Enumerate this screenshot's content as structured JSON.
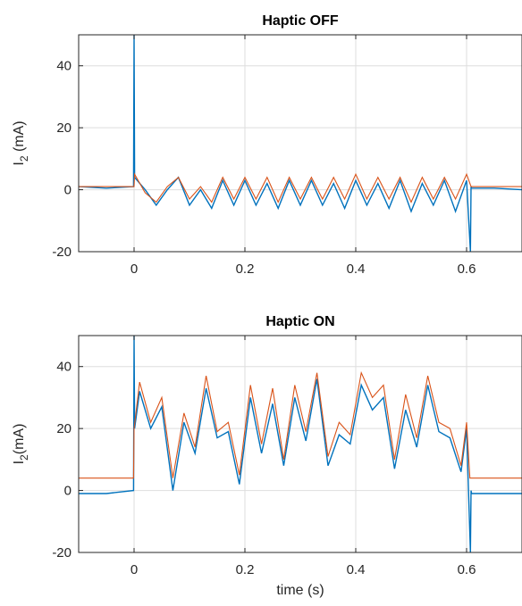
{
  "chart_data": [
    {
      "type": "line",
      "title": "Haptic OFF",
      "ylabel": "I_2 (mA)",
      "xlabel": "",
      "xlim": [
        -0.1,
        0.7
      ],
      "ylim": [
        -20,
        50
      ],
      "xticks": [
        "0",
        "0.2",
        "0.4",
        "0.6"
      ],
      "xtick_values": [
        0,
        0.2,
        0.4,
        0.6
      ],
      "yticks": [
        "-20",
        "0",
        "20",
        "40"
      ],
      "ytick_values": [
        -20,
        0,
        20,
        40
      ],
      "grid": true,
      "series": [
        {
          "color": "#0072BD",
          "x": [
            -0.1,
            -0.05,
            -0.001,
            0,
            0.001,
            0.02,
            0.04,
            0.06,
            0.08,
            0.1,
            0.12,
            0.14,
            0.16,
            0.18,
            0.2,
            0.22,
            0.24,
            0.26,
            0.28,
            0.3,
            0.32,
            0.34,
            0.36,
            0.38,
            0.4,
            0.42,
            0.44,
            0.46,
            0.48,
            0.5,
            0.52,
            0.54,
            0.56,
            0.58,
            0.6,
            0.607,
            0.608,
            0.609,
            0.65,
            0.7
          ],
          "y": [
            1,
            0.5,
            1,
            50,
            4,
            0,
            -5,
            0,
            4,
            -5,
            0,
            -6,
            3,
            -5,
            3,
            -5,
            2,
            -6,
            3,
            -5,
            3,
            -5,
            2,
            -6,
            3,
            -5,
            2,
            -6,
            3,
            -7,
            2,
            -5,
            3,
            -7,
            3,
            -20,
            1,
            0.5,
            0.5,
            0
          ]
        },
        {
          "color": "#D95319",
          "x": [
            -0.1,
            0,
            0.001,
            0.02,
            0.04,
            0.06,
            0.08,
            0.1,
            0.12,
            0.14,
            0.16,
            0.18,
            0.2,
            0.22,
            0.24,
            0.26,
            0.28,
            0.3,
            0.32,
            0.34,
            0.36,
            0.38,
            0.4,
            0.42,
            0.44,
            0.46,
            0.48,
            0.5,
            0.52,
            0.54,
            0.56,
            0.58,
            0.6,
            0.608,
            0.609,
            0.7
          ],
          "y": [
            1,
            1,
            5,
            -1,
            -4,
            1,
            4,
            -3,
            1,
            -4,
            4,
            -3,
            4,
            -3,
            4,
            -4,
            4,
            -3,
            4,
            -3,
            4,
            -3,
            5,
            -3,
            4,
            -3,
            4,
            -4,
            4,
            -3,
            4,
            -3,
            5,
            1,
            1,
            1
          ]
        }
      ]
    },
    {
      "type": "line",
      "title": "Haptic ON",
      "ylabel": "I_2(mA)",
      "xlabel": "time (s)",
      "xlim": [
        -0.1,
        0.7
      ],
      "ylim": [
        -20,
        50
      ],
      "xticks": [
        "0",
        "0.2",
        "0.4",
        "0.6"
      ],
      "xtick_values": [
        0,
        0.2,
        0.4,
        0.6
      ],
      "yticks": [
        "-20",
        "0",
        "20",
        "40"
      ],
      "ytick_values": [
        -20,
        0,
        20,
        40
      ],
      "grid": true,
      "series": [
        {
          "color": "#0072BD",
          "x": [
            -0.1,
            -0.05,
            -0.001,
            0,
            0.001,
            0.01,
            0.03,
            0.05,
            0.07,
            0.09,
            0.11,
            0.13,
            0.15,
            0.17,
            0.19,
            0.21,
            0.23,
            0.25,
            0.27,
            0.29,
            0.31,
            0.33,
            0.35,
            0.37,
            0.39,
            0.41,
            0.43,
            0.45,
            0.47,
            0.49,
            0.51,
            0.53,
            0.55,
            0.57,
            0.59,
            0.6,
            0.607,
            0.608,
            0.609,
            0.65,
            0.7
          ],
          "y": [
            -1,
            -1,
            0,
            50,
            20,
            32,
            20,
            27,
            0,
            22,
            12,
            33,
            17,
            19,
            2,
            30,
            12,
            28,
            8,
            30,
            16,
            36,
            8,
            18,
            15,
            34,
            26,
            30,
            7,
            26,
            14,
            34,
            19,
            17,
            6,
            20,
            -20,
            0,
            -1,
            -1,
            -1
          ]
        },
        {
          "color": "#D95319",
          "x": [
            -0.1,
            -0.001,
            0,
            0.01,
            0.03,
            0.05,
            0.07,
            0.09,
            0.11,
            0.13,
            0.15,
            0.17,
            0.19,
            0.21,
            0.23,
            0.25,
            0.27,
            0.29,
            0.31,
            0.33,
            0.35,
            0.37,
            0.39,
            0.41,
            0.43,
            0.45,
            0.47,
            0.49,
            0.51,
            0.53,
            0.55,
            0.57,
            0.59,
            0.6,
            0.606,
            0.607,
            0.7
          ],
          "y": [
            4,
            4,
            20,
            35,
            22,
            30,
            4,
            25,
            14,
            37,
            19,
            22,
            5,
            34,
            15,
            33,
            10,
            34,
            19,
            38,
            11,
            22,
            18,
            38,
            30,
            34,
            10,
            31,
            17,
            37,
            22,
            20,
            8,
            22,
            4,
            4,
            4
          ]
        }
      ]
    }
  ]
}
